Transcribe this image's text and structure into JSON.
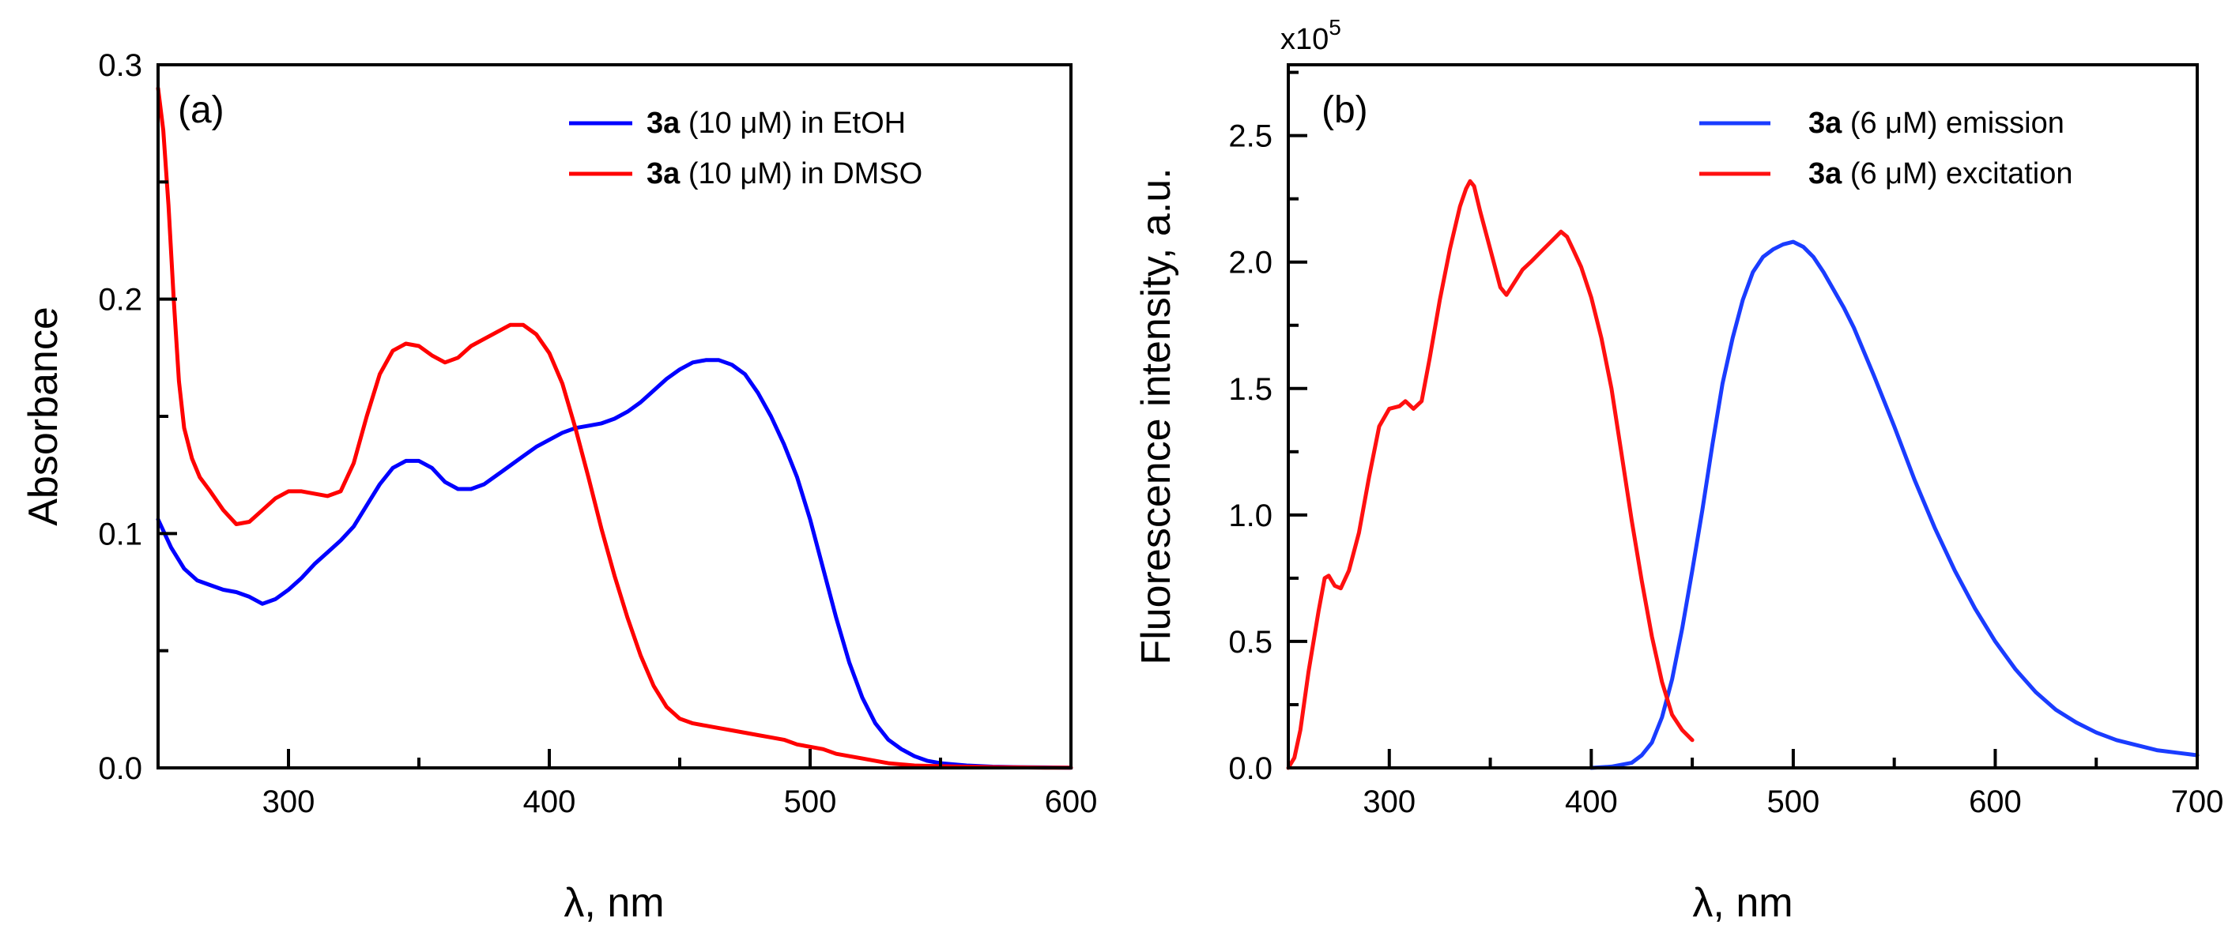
{
  "chart_data": [
    {
      "type": "line",
      "panel": "(a)",
      "xlabel": "λ, nm",
      "ylabel": "Absorbance",
      "xlim": [
        250,
        600
      ],
      "ylim": [
        0,
        0.3
      ],
      "xticks": [
        300,
        400,
        500,
        600
      ],
      "xtick_labels": [
        "300",
        "400",
        "500",
        "600"
      ],
      "yticks": [
        0.0,
        0.1,
        0.2,
        0.3
      ],
      "ytick_labels": [
        "0.0",
        "0.1",
        "0.2",
        "0.3"
      ],
      "legend_position": "top-right",
      "series": [
        {
          "name": "3a (10 μM) in EtOH",
          "legend_bold": "3a",
          "legend_rest": " (10 μM) in EtOH",
          "color": "#0000ff",
          "x": [
            250,
            255,
            260,
            265,
            270,
            275,
            280,
            285,
            290,
            295,
            300,
            305,
            310,
            315,
            320,
            325,
            330,
            335,
            340,
            345,
            350,
            355,
            360,
            365,
            370,
            375,
            380,
            385,
            390,
            395,
            400,
            405,
            410,
            415,
            420,
            425,
            430,
            435,
            440,
            445,
            450,
            455,
            460,
            465,
            470,
            475,
            480,
            485,
            490,
            495,
            500,
            505,
            510,
            515,
            520,
            525,
            530,
            535,
            540,
            545,
            550,
            560,
            570,
            580,
            590,
            600
          ],
          "y": [
            0.106,
            0.094,
            0.085,
            0.08,
            0.078,
            0.076,
            0.075,
            0.073,
            0.07,
            0.072,
            0.076,
            0.081,
            0.087,
            0.092,
            0.097,
            0.103,
            0.112,
            0.121,
            0.128,
            0.131,
            0.131,
            0.128,
            0.122,
            0.119,
            0.119,
            0.121,
            0.125,
            0.129,
            0.133,
            0.137,
            0.14,
            0.143,
            0.145,
            0.146,
            0.147,
            0.149,
            0.152,
            0.156,
            0.161,
            0.166,
            0.17,
            0.173,
            0.174,
            0.174,
            0.172,
            0.168,
            0.16,
            0.15,
            0.138,
            0.124,
            0.106,
            0.085,
            0.064,
            0.045,
            0.03,
            0.019,
            0.012,
            0.008,
            0.005,
            0.003,
            0.002,
            0.001,
            0.0005,
            0.0003,
            0.0002,
            0.0001
          ]
        },
        {
          "name": "3a (10 μM) in DMSO",
          "legend_bold": "3a",
          "legend_rest": " (10 μM) in DMSO",
          "color": "#ff0000",
          "x": [
            250,
            252,
            254,
            256,
            258,
            260,
            263,
            266,
            270,
            275,
            280,
            285,
            290,
            295,
            300,
            305,
            310,
            315,
            320,
            325,
            330,
            335,
            340,
            345,
            350,
            355,
            360,
            365,
            370,
            375,
            380,
            385,
            390,
            395,
            400,
            405,
            410,
            415,
            420,
            425,
            430,
            435,
            440,
            445,
            450,
            455,
            460,
            465,
            470,
            475,
            480,
            485,
            490,
            495,
            500,
            505,
            510,
            520,
            530,
            540,
            550,
            560,
            570,
            580,
            590,
            600
          ],
          "y": [
            0.29,
            0.272,
            0.24,
            0.2,
            0.165,
            0.145,
            0.132,
            0.124,
            0.118,
            0.11,
            0.104,
            0.105,
            0.11,
            0.115,
            0.118,
            0.118,
            0.117,
            0.116,
            0.118,
            0.13,
            0.15,
            0.168,
            0.178,
            0.181,
            0.18,
            0.176,
            0.173,
            0.175,
            0.18,
            0.183,
            0.186,
            0.189,
            0.189,
            0.185,
            0.177,
            0.164,
            0.145,
            0.124,
            0.102,
            0.082,
            0.064,
            0.048,
            0.035,
            0.026,
            0.021,
            0.019,
            0.018,
            0.017,
            0.016,
            0.015,
            0.014,
            0.013,
            0.012,
            0.01,
            0.009,
            0.008,
            0.006,
            0.004,
            0.002,
            0.001,
            0.0007,
            0.0005,
            0.0003,
            0.0002,
            0.0001,
            0.0001
          ]
        }
      ]
    },
    {
      "type": "line",
      "panel": "(b)",
      "xlabel": "λ, nm",
      "ylabel": "Fluorescence intensity, a.u.",
      "y_multiplier_base": "x10",
      "y_multiplier_exp": "5",
      "xlim": [
        250,
        700
      ],
      "ylim": [
        0,
        2.78
      ],
      "xticks": [
        300,
        400,
        500,
        600,
        700
      ],
      "xtick_labels": [
        "300",
        "400",
        "500",
        "600",
        "700"
      ],
      "yticks": [
        0.0,
        0.5,
        1.0,
        1.5,
        2.0,
        2.5
      ],
      "ytick_labels": [
        "0.0",
        "0.5",
        "1.0",
        "1.5",
        "2.0",
        "2.5"
      ],
      "legend_position": "top-right",
      "series": [
        {
          "name": "3a (6 μM) emission",
          "legend_bold": "3a",
          "legend_rest": " (6 μM) emission",
          "color": "#1a3cff",
          "x": [
            400,
            410,
            420,
            425,
            430,
            435,
            440,
            445,
            450,
            455,
            460,
            465,
            470,
            475,
            480,
            485,
            490,
            495,
            500,
            505,
            510,
            515,
            520,
            525,
            530,
            540,
            550,
            560,
            570,
            580,
            590,
            600,
            610,
            620,
            630,
            640,
            650,
            660,
            670,
            680,
            690,
            700
          ],
          "y": [
            0.0,
            0.005,
            0.02,
            0.05,
            0.1,
            0.2,
            0.35,
            0.55,
            0.78,
            1.02,
            1.28,
            1.52,
            1.7,
            1.85,
            1.96,
            2.02,
            2.05,
            2.07,
            2.08,
            2.06,
            2.02,
            1.96,
            1.89,
            1.82,
            1.74,
            1.55,
            1.35,
            1.14,
            0.95,
            0.78,
            0.63,
            0.5,
            0.39,
            0.3,
            0.23,
            0.18,
            0.14,
            0.11,
            0.09,
            0.07,
            0.06,
            0.05
          ]
        },
        {
          "name": "3a (6 μM) excitation",
          "legend_bold": "3a",
          "legend_rest": " (6 μM) excitation",
          "color": "#ff1010",
          "x": [
            250,
            253,
            256,
            260,
            265,
            268,
            270,
            273,
            276,
            280,
            285,
            290,
            295,
            300,
            305,
            308,
            312,
            316,
            320,
            325,
            330,
            335,
            338,
            340,
            342,
            345,
            350,
            355,
            358,
            362,
            366,
            370,
            375,
            380,
            385,
            388,
            391,
            395,
            400,
            405,
            410,
            415,
            420,
            425,
            430,
            435,
            440,
            445,
            450
          ],
          "y": [
            0.0,
            0.04,
            0.15,
            0.38,
            0.62,
            0.75,
            0.76,
            0.72,
            0.71,
            0.78,
            0.93,
            1.15,
            1.35,
            1.42,
            1.43,
            1.45,
            1.42,
            1.45,
            1.62,
            1.85,
            2.05,
            2.22,
            2.29,
            2.32,
            2.3,
            2.2,
            2.05,
            1.9,
            1.87,
            1.92,
            1.97,
            2.0,
            2.04,
            2.08,
            2.12,
            2.1,
            2.05,
            1.98,
            1.86,
            1.7,
            1.5,
            1.24,
            0.98,
            0.74,
            0.52,
            0.34,
            0.21,
            0.15,
            0.11
          ]
        }
      ]
    }
  ]
}
